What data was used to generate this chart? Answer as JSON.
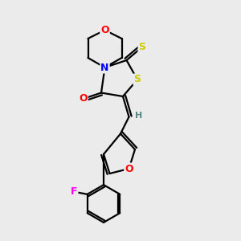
{
  "background_color": "#ebebeb",
  "atom_colors": {
    "O": "#ff0000",
    "N": "#0000ff",
    "S": "#cccc00",
    "F": "#ff00ee",
    "C": "#000000",
    "H": "#558888"
  },
  "bond_color": "#000000",
  "bond_width": 1.6,
  "fig_width": 3.0,
  "fig_height": 3.0,
  "dpi": 100
}
